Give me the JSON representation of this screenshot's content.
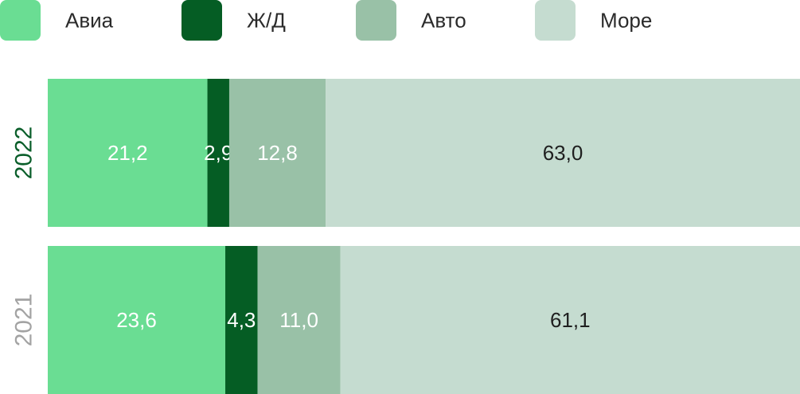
{
  "chart_data": {
    "type": "bar",
    "orientation": "horizontal",
    "stacked": true,
    "title": "",
    "xlabel": "",
    "ylabel": "",
    "grid": false,
    "legend_position": "top",
    "categories": [
      "2022",
      "2021"
    ],
    "series": [
      {
        "name": "Авиа",
        "color": "#6add93",
        "text_color": "#ffffff",
        "values": [
          21.2,
          23.6
        ],
        "labels": [
          "21,2",
          "23,6"
        ]
      },
      {
        "name": "Ж/Д",
        "color": "#055d24",
        "text_color": "#ffffff",
        "values": [
          2.9,
          4.3
        ],
        "labels": [
          "2,9",
          "4,3"
        ]
      },
      {
        "name": "Авто",
        "color": "#99c1a7",
        "text_color": "#ffffff",
        "values": [
          12.8,
          11.0
        ],
        "labels": [
          "12,8",
          "11,0"
        ]
      },
      {
        "name": "Море",
        "color": "#c5dcd0",
        "text_color": "#1f1f1f",
        "values": [
          63.0,
          61.1
        ],
        "labels": [
          "63,0",
          "61,1"
        ]
      }
    ],
    "category_colors": [
      "#0a5e2a",
      "#a3a3a3"
    ]
  }
}
